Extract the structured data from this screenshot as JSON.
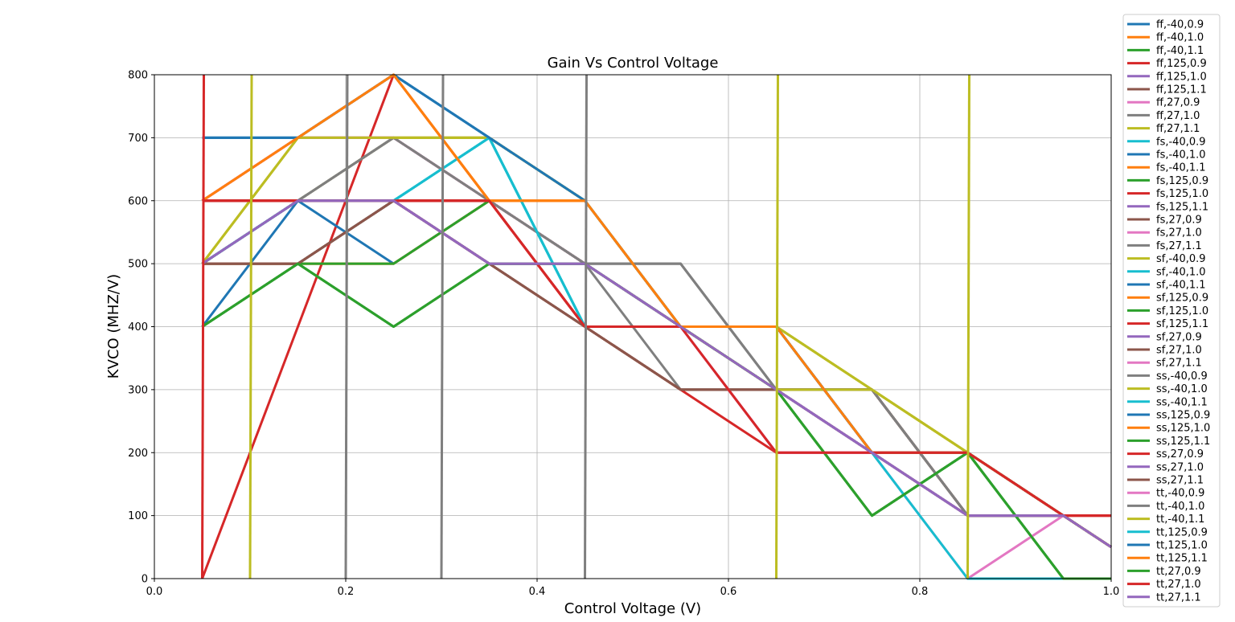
{
  "chart_data": {
    "type": "line",
    "title": "Gain  Vs Control Voltage",
    "xlabel": "Control Voltage (V)",
    "ylabel": "KVCO (MHZ/V)",
    "xlim": [
      0.0,
      1.0
    ],
    "ylim": [
      0,
      800
    ],
    "xticks": [
      "0.0",
      "0.2",
      "0.4",
      "0.6",
      "0.8",
      "1.0"
    ],
    "yticks": [
      "0",
      "100",
      "200",
      "300",
      "400",
      "500",
      "600",
      "700",
      "800"
    ],
    "grid": true,
    "legend_position": "outside right",
    "x": [
      0.05,
      0.15,
      0.25,
      0.35,
      0.45,
      0.55,
      0.65,
      0.75,
      0.85,
      0.95,
      1.0
    ],
    "series": [
      {
        "name": "ff,-40,0.9",
        "color": "#1f77b4",
        "values": [
          600,
          600,
          600,
          600,
          500,
          400,
          300,
          200,
          100,
          100,
          50
        ]
      },
      {
        "name": "ff,-40,1.0",
        "color": "#ff7f0e",
        "values": [
          500,
          500,
          500,
          600,
          500,
          400,
          300,
          200,
          100,
          100,
          50
        ]
      },
      {
        "name": "ff,-40,1.1",
        "color": "#2ca02c",
        "values": [
          600,
          600,
          600,
          600,
          500,
          400,
          300,
          200,
          100,
          100,
          50
        ]
      },
      {
        "name": "ff,125,0.9",
        "color": "#d62728",
        "values": [
          600,
          600,
          600,
          600,
          400,
          400,
          400,
          200,
          100,
          100,
          50
        ]
      },
      {
        "name": "ff,125,1.0",
        "color": "#9467bd",
        "values": [
          500,
          600,
          600,
          500,
          500,
          400,
          300,
          200,
          100,
          100,
          50
        ]
      },
      {
        "name": "ff,125,1.1",
        "color": "#8c564b",
        "values": [
          500,
          500,
          600,
          500,
          400,
          300,
          300,
          300,
          100,
          100,
          50
        ]
      },
      {
        "name": "ff,27,0.9",
        "color": "#e377c2",
        "values": [
          600,
          700,
          700,
          700,
          600,
          400,
          200,
          200,
          100,
          100,
          50
        ]
      },
      {
        "name": "ff,27,1.0",
        "color": "#7f7f7f",
        "values": [
          500,
          600,
          700,
          600,
          500,
          300,
          300,
          300,
          100,
          100,
          50
        ]
      },
      {
        "name": "ff,27,1.1",
        "color": "#bcbd22",
        "values": [
          500,
          700,
          700,
          700,
          600,
          400,
          400,
          300,
          200,
          100,
          50
        ]
      },
      {
        "name": "fs,-40,0.9",
        "color": "#17becf",
        "values": [
          500,
          500,
          600,
          700,
          400,
          400,
          400,
          200,
          200,
          100,
          50
        ]
      },
      {
        "name": "fs,-40,1.0",
        "color": "#1f77b4",
        "values": [
          700,
          700,
          800,
          700,
          600,
          400,
          400,
          200,
          200,
          100,
          50
        ]
      },
      {
        "name": "fs,-40,1.1",
        "color": "#ff7f0e",
        "values": [
          600,
          700,
          800,
          600,
          600,
          400,
          400,
          200,
          200,
          100,
          50
        ]
      },
      {
        "name": "fs,125,0.9",
        "color": "#2ca02c",
        "values": [
          400,
          500,
          400,
          500,
          500,
          400,
          300,
          100,
          200,
          0,
          0
        ]
      },
      {
        "name": "fs,125,1.0",
        "color": "#d62728",
        "values": [
          0,
          400,
          800,
          600,
          400,
          400,
          300,
          200,
          200,
          100,
          100
        ]
      },
      {
        "name": "fs,125,1.1",
        "color": "#9467bd",
        "values": [
          500,
          600,
          600,
          500,
          500,
          400,
          300,
          200,
          100,
          100,
          50
        ]
      },
      {
        "name": "fs,27,0.9",
        "color": "#8c564b",
        "values": [
          500,
          500,
          600,
          500,
          400,
          300,
          300,
          300,
          100,
          100,
          50
        ]
      },
      {
        "name": "fs,27,1.0",
        "color": "#e377c2",
        "values": [
          600,
          700,
          700,
          600,
          500,
          400,
          200,
          200,
          200,
          100,
          50
        ]
      },
      {
        "name": "fs,27,1.1",
        "color": "#7f7f7f",
        "values": [
          500,
          600,
          700,
          600,
          500,
          500,
          300,
          300,
          100,
          100,
          50
        ]
      },
      {
        "name": "sf,-40,0.9",
        "color": "#bcbd22",
        "values": [
          500,
          600,
          700,
          700,
          600,
          400,
          400,
          300,
          200,
          100,
          50
        ]
      },
      {
        "name": "sf,-40,1.0",
        "color": "#17becf",
        "values": [
          500,
          600,
          600,
          700,
          400,
          400,
          400,
          200,
          200,
          100,
          50
        ]
      },
      {
        "name": "sf,-40,1.1",
        "color": "#1f77b4",
        "values": [
          400,
          600,
          500,
          600,
          500,
          400,
          300,
          200,
          100,
          100,
          50
        ]
      },
      {
        "name": "sf,125,0.9",
        "color": "#ff7f0e",
        "values": [
          500,
          500,
          500,
          600,
          500,
          400,
          300,
          200,
          100,
          100,
          50
        ]
      },
      {
        "name": "sf,125,1.0",
        "color": "#2ca02c",
        "values": [
          400,
          500,
          500,
          600,
          500,
          400,
          300,
          100,
          200,
          0,
          0
        ]
      },
      {
        "name": "sf,125,1.1",
        "color": "#d62728",
        "values": [
          600,
          600,
          600,
          600,
          400,
          300,
          200,
          200,
          200,
          100,
          100
        ]
      },
      {
        "name": "sf,27,0.9",
        "color": "#9467bd",
        "values": [
          500,
          600,
          600,
          500,
          500,
          400,
          300,
          200,
          100,
          100,
          50
        ]
      },
      {
        "name": "sf,27,1.0",
        "color": "#8c564b",
        "values": [
          500,
          500,
          600,
          500,
          400,
          300,
          300,
          300,
          100,
          100,
          50
        ]
      },
      {
        "name": "sf,27,1.1",
        "color": "#e377c2",
        "values": [
          600,
          700,
          700,
          600,
          500,
          400,
          200,
          200,
          200,
          100,
          50
        ]
      },
      {
        "name": "ss,-40,0.9",
        "color": "#7f7f7f",
        "values": [
          500,
          600,
          700,
          600,
          500,
          500,
          300,
          300,
          100,
          100,
          50
        ]
      },
      {
        "name": "ss,-40,1.0",
        "color": "#bcbd22",
        "values": [
          500,
          700,
          700,
          700,
          600,
          400,
          400,
          300,
          200,
          100,
          50
        ]
      },
      {
        "name": "ss,-40,1.1",
        "color": "#17becf",
        "values": [
          500,
          600,
          600,
          700,
          400,
          400,
          400,
          200,
          200,
          100,
          50
        ]
      },
      {
        "name": "ss,125,0.9",
        "color": "#1f77b4",
        "values": [
          700,
          700,
          800,
          700,
          600,
          400,
          400,
          200,
          200,
          100,
          50
        ]
      },
      {
        "name": "ss,125,1.0",
        "color": "#ff7f0e",
        "values": [
          600,
          700,
          800,
          600,
          600,
          400,
          400,
          200,
          200,
          100,
          50
        ]
      },
      {
        "name": "ss,125,1.1",
        "color": "#2ca02c",
        "values": [
          400,
          500,
          400,
          500,
          500,
          400,
          300,
          100,
          200,
          0,
          0
        ]
      },
      {
        "name": "ss,27,0.9",
        "color": "#d62728",
        "values": [
          600,
          600,
          600,
          600,
          400,
          400,
          400,
          200,
          200,
          100,
          100
        ]
      },
      {
        "name": "ss,27,1.0",
        "color": "#9467bd",
        "values": [
          500,
          600,
          600,
          500,
          500,
          400,
          300,
          200,
          100,
          100,
          50
        ]
      },
      {
        "name": "ss,27,1.1",
        "color": "#8c564b",
        "values": [
          500,
          500,
          600,
          500,
          400,
          300,
          300,
          300,
          100,
          100,
          50
        ]
      },
      {
        "name": "tt,-40,0.9",
        "color": "#e377c2",
        "values": [
          600,
          700,
          700,
          600,
          500,
          400,
          200,
          200,
          0,
          100,
          50
        ]
      },
      {
        "name": "tt,-40,1.0",
        "color": "#7f7f7f",
        "values": [
          500,
          600,
          700,
          600,
          500,
          500,
          300,
          300,
          100,
          100,
          50
        ]
      },
      {
        "name": "tt,-40,1.1",
        "color": "#bcbd22",
        "values": [
          500,
          700,
          700,
          700,
          600,
          400,
          300,
          300,
          200,
          100,
          50
        ]
      },
      {
        "name": "tt,125,0.9",
        "color": "#17becf",
        "values": [
          500,
          600,
          600,
          700,
          400,
          400,
          400,
          200,
          0,
          0,
          0
        ]
      },
      {
        "name": "tt,125,1.0",
        "color": "#1f77b4",
        "values": [
          700,
          700,
          800,
          700,
          600,
          400,
          400,
          200,
          200,
          100,
          50
        ]
      },
      {
        "name": "tt,125,1.1",
        "color": "#ff7f0e",
        "values": [
          600,
          700,
          800,
          600,
          600,
          400,
          400,
          200,
          200,
          100,
          50
        ]
      },
      {
        "name": "tt,27,0.9",
        "color": "#2ca02c",
        "values": [
          400,
          500,
          400,
          500,
          500,
          400,
          300,
          100,
          200,
          0,
          0
        ]
      },
      {
        "name": "tt,27,1.0",
        "color": "#d62728",
        "values": [
          600,
          600,
          600,
          600,
          400,
          400,
          200,
          200,
          200,
          100,
          100
        ]
      },
      {
        "name": "tt,27,1.1",
        "color": "#9467bd",
        "values": [
          500,
          600,
          600,
          500,
          500,
          400,
          300,
          200,
          100,
          100,
          50
        ]
      }
    ],
    "vertical_spikes": [
      {
        "x": 0.05,
        "color": "#d62728"
      },
      {
        "x": 0.1,
        "color": "#bcbd22"
      },
      {
        "x": 0.2,
        "color": "#7f7f7f"
      },
      {
        "x": 0.3,
        "color": "#7f7f7f"
      },
      {
        "x": 0.45,
        "color": "#7f7f7f"
      },
      {
        "x": 0.65,
        "color": "#bcbd22"
      },
      {
        "x": 0.85,
        "color": "#bcbd22"
      }
    ]
  }
}
